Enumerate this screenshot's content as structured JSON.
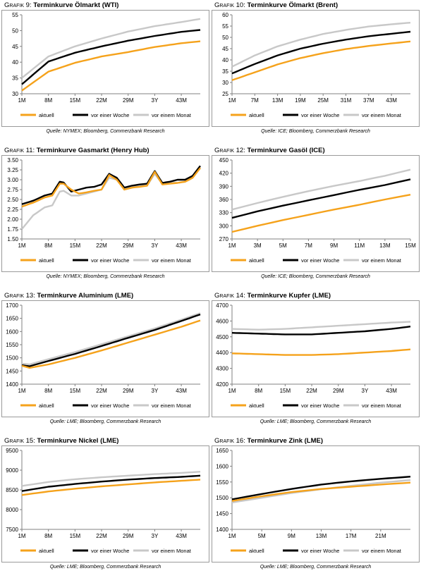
{
  "legend_labels": [
    "aktuell",
    "vor einer Woche",
    "vor einem Monat"
  ],
  "chart_data": [
    {
      "type": "line",
      "prefix": "Grafik 9:",
      "title": "Terminkurve Ölmarkt (WTI)",
      "source": "Quelle: NYMEX; Bloomberg, Commerzbank Research",
      "categories": [
        "1M",
        "8M",
        "15M",
        "22M",
        "29M",
        "3Y",
        "43M"
      ],
      "n_points": 48,
      "yticks": [
        30,
        35,
        40,
        45,
        50,
        55
      ],
      "ylim": [
        30,
        55
      ],
      "series": [
        {
          "name": "aktuell",
          "color": "#f5a21b",
          "x": [
            1,
            8,
            15,
            22,
            29,
            36,
            43,
            48
          ],
          "y": [
            31,
            37,
            39.8,
            41.8,
            43.2,
            44.8,
            46,
            46.6
          ]
        },
        {
          "name": "vor einer Woche",
          "color": "#000000",
          "x": [
            1,
            8,
            15,
            22,
            29,
            36,
            43,
            48
          ],
          "y": [
            33,
            40.2,
            43,
            45,
            46.8,
            48.3,
            49.6,
            50.2
          ]
        },
        {
          "name": "vor einem Monat",
          "color": "#c8c8c8",
          "x": [
            1,
            8,
            15,
            22,
            29,
            36,
            43,
            48
          ],
          "y": [
            35,
            41.8,
            45,
            47.5,
            49.7,
            51.4,
            52.7,
            53.7
          ]
        }
      ]
    },
    {
      "type": "line",
      "prefix": "Grafik 10:",
      "title": "Terminkurve Ölmarkt (Brent)",
      "source": "Quelle: ICE; Bloomberg, Commerzbank Research",
      "categories": [
        "1M",
        "7M",
        "13M",
        "19M",
        "25M",
        "31M",
        "37M",
        "43M"
      ],
      "n_points": 48,
      "yticks": [
        25,
        30,
        35,
        40,
        45,
        50,
        55,
        60
      ],
      "ylim": [
        25,
        60
      ],
      "series": [
        {
          "name": "aktuell",
          "color": "#f5a21b",
          "x": [
            1,
            7,
            13,
            19,
            25,
            31,
            37,
            43,
            48
          ],
          "y": [
            31,
            34.5,
            38,
            40.8,
            43,
            44.8,
            46.2,
            47.3,
            48.2
          ]
        },
        {
          "name": "vor einer Woche",
          "color": "#000000",
          "x": [
            1,
            7,
            13,
            19,
            25,
            31,
            37,
            43,
            48
          ],
          "y": [
            34,
            38.2,
            42,
            45,
            47.2,
            49,
            50.5,
            51.6,
            52.5
          ]
        },
        {
          "name": "vor einem Monat",
          "color": "#c8c8c8",
          "x": [
            1,
            7,
            13,
            19,
            25,
            31,
            37,
            43,
            48
          ],
          "y": [
            37,
            42,
            46,
            49,
            51.5,
            53.3,
            54.8,
            55.8,
            56.5
          ]
        }
      ]
    },
    {
      "type": "line",
      "prefix": "Grafik 11:",
      "title": "Terminkurve Gasmarkt (Henry Hub)",
      "source": "Quelle: NYMEX; Bloomberg, Commerzbank Research",
      "categories": [
        "1M",
        "8M",
        "15M",
        "22M",
        "29M",
        "3Y",
        "43M"
      ],
      "n_points": 48,
      "yticks": [
        1.5,
        1.75,
        2.0,
        2.25,
        2.5,
        2.75,
        3.0,
        3.25,
        3.5
      ],
      "ylim": [
        1.5,
        3.5
      ],
      "series": [
        {
          "name": "aktuell",
          "color": "#f5a21b",
          "x": [
            1,
            4,
            7,
            9,
            11,
            12,
            14,
            16,
            18,
            20,
            22,
            24,
            26,
            28,
            30,
            32,
            34,
            36,
            38,
            40,
            42,
            44,
            46,
            48
          ],
          "y": [
            2.32,
            2.42,
            2.55,
            2.6,
            2.9,
            2.9,
            2.75,
            2.65,
            2.68,
            2.72,
            2.75,
            3.12,
            3.0,
            2.75,
            2.8,
            2.82,
            2.85,
            3.2,
            2.88,
            2.9,
            2.92,
            2.95,
            3.05,
            3.3
          ]
        },
        {
          "name": "vor einer Woche",
          "color": "#000000",
          "x": [
            1,
            4,
            7,
            9,
            11,
            12,
            14,
            16,
            18,
            20,
            22,
            24,
            26,
            28,
            30,
            32,
            34,
            36,
            38,
            40,
            42,
            44,
            46,
            48
          ],
          "y": [
            2.38,
            2.47,
            2.6,
            2.65,
            2.95,
            2.93,
            2.7,
            2.75,
            2.8,
            2.82,
            2.88,
            3.15,
            3.05,
            2.8,
            2.85,
            2.88,
            2.9,
            3.22,
            2.92,
            2.95,
            3.0,
            3.0,
            3.1,
            3.35
          ]
        },
        {
          "name": "vor einem Monat",
          "color": "#c8c8c8",
          "x": [
            1,
            4,
            7,
            9,
            11,
            12,
            14,
            16,
            18,
            20,
            22,
            24,
            26,
            28,
            30,
            32,
            34,
            36,
            38,
            40,
            42,
            44,
            46,
            48
          ],
          "y": [
            1.75,
            2.1,
            2.3,
            2.35,
            2.7,
            2.72,
            2.6,
            2.6,
            2.65,
            2.7,
            2.75,
            3.05,
            3.0,
            2.75,
            2.8,
            2.85,
            2.85,
            3.15,
            2.9,
            2.95,
            2.92,
            2.95,
            3.05,
            3.3
          ]
        }
      ]
    },
    {
      "type": "line",
      "prefix": "Grafik 12:",
      "title": "Terminkurve Gasöl (ICE)",
      "source": "Quelle: ICE; Bloomberg, Commerzbank Research",
      "categories": [
        "1M",
        "3M",
        "5M",
        "7M",
        "9M",
        "11M",
        "13M",
        "15M"
      ],
      "n_points": 15,
      "yticks": [
        270,
        300,
        330,
        360,
        390,
        420,
        450
      ],
      "ylim": [
        270,
        450
      ],
      "series": [
        {
          "name": "aktuell",
          "color": "#f5a21b",
          "x": [
            1,
            3,
            5,
            7,
            9,
            11,
            13,
            15
          ],
          "y": [
            286,
            300,
            313,
            325,
            337,
            348,
            360,
            371
          ]
        },
        {
          "name": "vor einer Woche",
          "color": "#000000",
          "x": [
            1,
            3,
            5,
            7,
            9,
            11,
            13,
            15
          ],
          "y": [
            318,
            333,
            346,
            358,
            370,
            382,
            393,
            406
          ]
        },
        {
          "name": "vor einem Monat",
          "color": "#c8c8c8",
          "x": [
            1,
            3,
            5,
            7,
            9,
            11,
            13,
            15
          ],
          "y": [
            337,
            352,
            366,
            379,
            391,
            402,
            414,
            428
          ]
        }
      ]
    },
    {
      "type": "line",
      "prefix": "Grafik 13:",
      "title": " Terminkurve Aluminium (LME)",
      "source": "Quelle: LME; Bloomberg, Commerzbank Research",
      "categories": [
        "1M",
        "8M",
        "15M",
        "22M",
        "29M",
        "3Y",
        "43M"
      ],
      "n_points": 48,
      "yticks": [
        1400,
        1450,
        1500,
        1550,
        1600,
        1650,
        1700
      ],
      "ylim": [
        1400,
        1700
      ],
      "series": [
        {
          "name": "aktuell",
          "color": "#f5a21b",
          "x": [
            1,
            3,
            8,
            15,
            22,
            29,
            36,
            43,
            48
          ],
          "y": [
            1470,
            1462,
            1475,
            1500,
            1528,
            1558,
            1588,
            1618,
            1642
          ]
        },
        {
          "name": "vor einer Woche",
          "color": "#000000",
          "x": [
            1,
            3,
            8,
            15,
            22,
            29,
            36,
            43,
            48
          ],
          "y": [
            1472,
            1468,
            1488,
            1515,
            1545,
            1576,
            1606,
            1640,
            1665
          ]
        },
        {
          "name": "vor einem Monat",
          "color": "#c8c8c8",
          "x": [
            1,
            3,
            8,
            15,
            22,
            29,
            36,
            43,
            48
          ],
          "y": [
            1478,
            1475,
            1495,
            1522,
            1552,
            1582,
            1612,
            1645,
            1670
          ]
        }
      ]
    },
    {
      "type": "line",
      "prefix": "Grafik 14:",
      "title": "Terminkurve Kupfer (LME)",
      "source": "Quelle: LME; Bloomberg, Commerzbank Research",
      "categories": [
        "1M",
        "8M",
        "15M",
        "22M",
        "29M",
        "3Y",
        "43M"
      ],
      "n_points": 48,
      "yticks": [
        4200,
        4300,
        4400,
        4500,
        4600,
        4700
      ],
      "ylim": [
        4200,
        4700
      ],
      "series": [
        {
          "name": "aktuell",
          "color": "#f5a21b",
          "x": [
            1,
            8,
            15,
            22,
            29,
            36,
            43,
            48
          ],
          "y": [
            4395,
            4390,
            4385,
            4385,
            4390,
            4400,
            4410,
            4420
          ]
        },
        {
          "name": "vor einer Woche",
          "color": "#000000",
          "x": [
            1,
            8,
            15,
            22,
            29,
            36,
            43,
            48
          ],
          "y": [
            4525,
            4520,
            4515,
            4515,
            4525,
            4535,
            4550,
            4565
          ]
        },
        {
          "name": "vor einem Monat",
          "color": "#c8c8c8",
          "x": [
            1,
            8,
            15,
            22,
            29,
            36,
            43,
            48
          ],
          "y": [
            4550,
            4545,
            4550,
            4560,
            4570,
            4580,
            4590,
            4595
          ]
        }
      ]
    },
    {
      "type": "line",
      "prefix": "Grafik 15:",
      "title": "Terminkurve Nickel (LME)",
      "source": "Quelle: LME; Bloomberg, Commerzbank Research",
      "categories": [
        "1M",
        "8M",
        "15M",
        "22M",
        "29M",
        "3Y",
        "43M"
      ],
      "n_points": 48,
      "yticks": [
        7500,
        8000,
        8500,
        9000,
        9500
      ],
      "ylim": [
        7500,
        9500
      ],
      "series": [
        {
          "name": "aktuell",
          "color": "#f5a21b",
          "x": [
            1,
            8,
            15,
            22,
            29,
            36,
            43,
            48
          ],
          "y": [
            8370,
            8460,
            8530,
            8590,
            8640,
            8690,
            8730,
            8760
          ]
        },
        {
          "name": "vor einer Woche",
          "color": "#000000",
          "x": [
            1,
            8,
            15,
            22,
            29,
            36,
            43,
            48
          ],
          "y": [
            8470,
            8580,
            8650,
            8710,
            8760,
            8800,
            8830,
            8860
          ]
        },
        {
          "name": "vor einem Monat",
          "color": "#c8c8c8",
          "x": [
            1,
            8,
            15,
            22,
            29,
            36,
            43,
            48
          ],
          "y": [
            8600,
            8700,
            8770,
            8820,
            8860,
            8900,
            8930,
            8960
          ]
        }
      ]
    },
    {
      "type": "line",
      "prefix": "Grafik 16:",
      "title": "Terminkurve Zink (LME)",
      "source": "Quelle: LME; Bloomberg, Commerzbank Research",
      "categories": [
        "1M",
        "5M",
        "9M",
        "13M",
        "17M",
        "21M"
      ],
      "n_points": 25,
      "yticks": [
        1400,
        1450,
        1500,
        1550,
        1600,
        1650
      ],
      "ylim": [
        1400,
        1650
      ],
      "series": [
        {
          "name": "aktuell",
          "color": "#f5a21b",
          "x": [
            1,
            5,
            9,
            13,
            17,
            21,
            25
          ],
          "y": [
            1490,
            1505,
            1518,
            1528,
            1535,
            1542,
            1548
          ]
        },
        {
          "name": "vor einer Woche",
          "color": "#000000",
          "x": [
            1,
            5,
            9,
            13,
            17,
            21,
            25
          ],
          "y": [
            1495,
            1512,
            1528,
            1542,
            1552,
            1560,
            1567
          ]
        },
        {
          "name": "vor einem Monat",
          "color": "#c8c8c8",
          "x": [
            1,
            5,
            9,
            13,
            17,
            21,
            25
          ],
          "y": [
            1485,
            1500,
            1515,
            1527,
            1538,
            1548,
            1556
          ]
        }
      ]
    }
  ]
}
